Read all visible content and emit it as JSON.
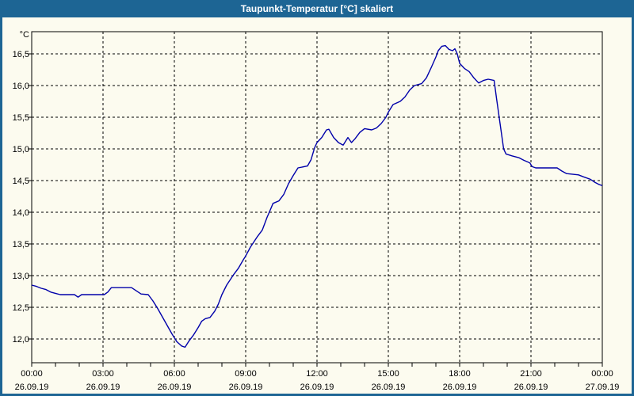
{
  "window": {
    "title": "Taupunkt-Temperatur [°C] skaliert",
    "title_bar_color": "#1D6594",
    "frame_color": "#1D6594",
    "background_color": "#FCFBEF"
  },
  "chart_data": {
    "type": "line",
    "title": "Taupunkt-Temperatur [°C] skaliert",
    "y_unit_label": "°C",
    "line_color": "#0000AA",
    "grid": "dashed",
    "legend": "none",
    "xlim_hours": [
      0,
      24
    ],
    "ylim": [
      11.625,
      16.85
    ],
    "x_minor_tick_every_hours": 1,
    "y_ticks": [
      {
        "value": 16.5,
        "label": "16,5"
      },
      {
        "value": 16.0,
        "label": "16,0"
      },
      {
        "value": 15.5,
        "label": "15,5"
      },
      {
        "value": 15.0,
        "label": "15,0"
      },
      {
        "value": 14.5,
        "label": "14,5"
      },
      {
        "value": 14.0,
        "label": "14,0"
      },
      {
        "value": 13.5,
        "label": "13,5"
      },
      {
        "value": 13.0,
        "label": "13,0"
      },
      {
        "value": 12.5,
        "label": "12,5"
      },
      {
        "value": 12.0,
        "label": "12,0"
      }
    ],
    "x_ticks": [
      {
        "hour": 0,
        "time": "00:00",
        "date": "26.09.19"
      },
      {
        "hour": 3,
        "time": "03:00",
        "date": "26.09.19"
      },
      {
        "hour": 6,
        "time": "06:00",
        "date": "26.09.19"
      },
      {
        "hour": 9,
        "time": "09:00",
        "date": "26.09.19"
      },
      {
        "hour": 12,
        "time": "12:00",
        "date": "26.09.19"
      },
      {
        "hour": 15,
        "time": "15:00",
        "date": "26.09.19"
      },
      {
        "hour": 18,
        "time": "18:00",
        "date": "26.09.19"
      },
      {
        "hour": 21,
        "time": "21:00",
        "date": "26.09.19"
      },
      {
        "hour": 24,
        "time": "00:00",
        "date": "27.09.19"
      }
    ],
    "series": [
      {
        "name": "Taupunkt-Temperatur",
        "points": [
          [
            0.0,
            12.85
          ],
          [
            0.2,
            12.83
          ],
          [
            0.4,
            12.8
          ],
          [
            0.6,
            12.78
          ],
          [
            0.8,
            12.74
          ],
          [
            1.0,
            12.72
          ],
          [
            1.2,
            12.7
          ],
          [
            1.8,
            12.7
          ],
          [
            1.95,
            12.66
          ],
          [
            2.1,
            12.7
          ],
          [
            3.05,
            12.7
          ],
          [
            3.2,
            12.74
          ],
          [
            3.35,
            12.81
          ],
          [
            4.2,
            12.81
          ],
          [
            4.4,
            12.76
          ],
          [
            4.6,
            12.71
          ],
          [
            4.9,
            12.7
          ],
          [
            5.1,
            12.6
          ],
          [
            5.3,
            12.48
          ],
          [
            5.6,
            12.28
          ],
          [
            5.9,
            12.08
          ],
          [
            6.1,
            11.96
          ],
          [
            6.3,
            11.89
          ],
          [
            6.45,
            11.87
          ],
          [
            6.6,
            11.96
          ],
          [
            6.8,
            12.06
          ],
          [
            7.0,
            12.18
          ],
          [
            7.15,
            12.28
          ],
          [
            7.3,
            12.32
          ],
          [
            7.5,
            12.34
          ],
          [
            7.7,
            12.44
          ],
          [
            7.85,
            12.55
          ],
          [
            8.0,
            12.7
          ],
          [
            8.2,
            12.85
          ],
          [
            8.5,
            13.02
          ],
          [
            8.7,
            13.12
          ],
          [
            8.9,
            13.25
          ],
          [
            9.0,
            13.31
          ],
          [
            9.2,
            13.45
          ],
          [
            9.5,
            13.62
          ],
          [
            9.7,
            13.72
          ],
          [
            9.9,
            13.92
          ],
          [
            10.05,
            14.05
          ],
          [
            10.15,
            14.14
          ],
          [
            10.4,
            14.18
          ],
          [
            10.6,
            14.28
          ],
          [
            10.8,
            14.45
          ],
          [
            11.0,
            14.58
          ],
          [
            11.2,
            14.7
          ],
          [
            11.6,
            14.73
          ],
          [
            11.75,
            14.83
          ],
          [
            11.9,
            15.02
          ],
          [
            12.0,
            15.1
          ],
          [
            12.2,
            15.18
          ],
          [
            12.4,
            15.3
          ],
          [
            12.5,
            15.31
          ],
          [
            12.7,
            15.18
          ],
          [
            12.9,
            15.1
          ],
          [
            13.1,
            15.06
          ],
          [
            13.3,
            15.18
          ],
          [
            13.45,
            15.1
          ],
          [
            13.6,
            15.16
          ],
          [
            13.8,
            15.26
          ],
          [
            14.0,
            15.32
          ],
          [
            14.3,
            15.3
          ],
          [
            14.5,
            15.33
          ],
          [
            14.7,
            15.4
          ],
          [
            14.9,
            15.5
          ],
          [
            15.0,
            15.58
          ],
          [
            15.2,
            15.7
          ],
          [
            15.5,
            15.75
          ],
          [
            15.7,
            15.82
          ],
          [
            15.9,
            15.93
          ],
          [
            16.1,
            16.0
          ],
          [
            16.4,
            16.03
          ],
          [
            16.6,
            16.12
          ],
          [
            16.8,
            16.28
          ],
          [
            17.0,
            16.45
          ],
          [
            17.1,
            16.55
          ],
          [
            17.25,
            16.62
          ],
          [
            17.4,
            16.63
          ],
          [
            17.55,
            16.57
          ],
          [
            17.7,
            16.55
          ],
          [
            17.8,
            16.58
          ],
          [
            17.9,
            16.5
          ],
          [
            18.0,
            16.35
          ],
          [
            18.2,
            16.27
          ],
          [
            18.4,
            16.22
          ],
          [
            18.6,
            16.12
          ],
          [
            18.8,
            16.04
          ],
          [
            19.0,
            16.08
          ],
          [
            19.2,
            16.1
          ],
          [
            19.45,
            16.08
          ],
          [
            19.55,
            15.8
          ],
          [
            19.7,
            15.4
          ],
          [
            19.85,
            15.0
          ],
          [
            19.95,
            14.92
          ],
          [
            20.2,
            14.89
          ],
          [
            20.5,
            14.86
          ],
          [
            20.7,
            14.82
          ],
          [
            20.95,
            14.78
          ],
          [
            21.05,
            14.72
          ],
          [
            21.2,
            14.7
          ],
          [
            22.1,
            14.7
          ],
          [
            22.3,
            14.65
          ],
          [
            22.5,
            14.61
          ],
          [
            23.0,
            14.59
          ],
          [
            23.2,
            14.56
          ],
          [
            23.5,
            14.52
          ],
          [
            23.7,
            14.47
          ],
          [
            23.85,
            14.44
          ],
          [
            24.0,
            14.42
          ]
        ]
      }
    ]
  }
}
